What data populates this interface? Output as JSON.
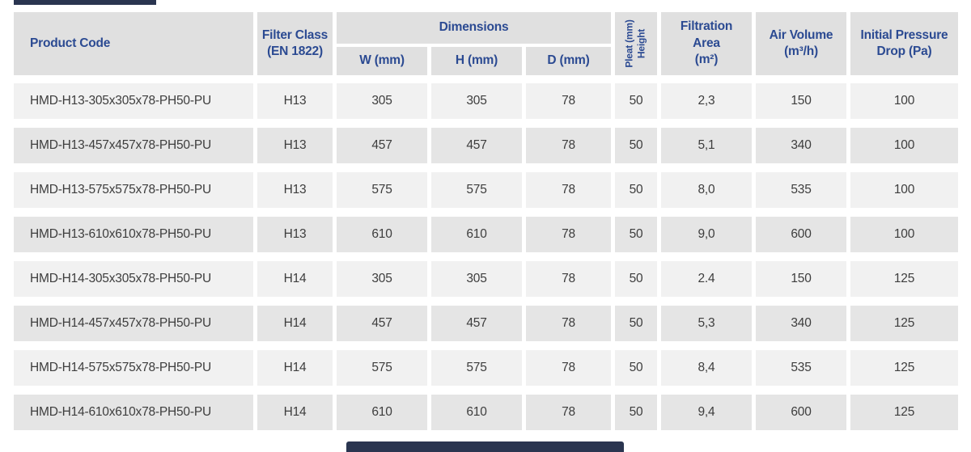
{
  "colors": {
    "header_text": "#2b4a92",
    "header_bg": "#e0e0e0",
    "row_odd_bg": "#f1f1f1",
    "row_even_bg": "#e5e5e5",
    "data_text": "#3d3d3d",
    "accent_dark": "#2a3550"
  },
  "table": {
    "headers": {
      "product_code": "Product Code",
      "filter_class_line1": "Filter Class",
      "filter_class_line2": "(EN 1822)",
      "dimensions": "Dimensions",
      "w": "W (mm)",
      "h": "H (mm)",
      "d": "D (mm)",
      "pleat_line1": "Pleat (mm)",
      "pleat_line2": "Height",
      "filtration_line1": "Filtration",
      "filtration_line2": "Area",
      "filtration_line3": "(m²)",
      "air_line1": "Air Volume",
      "air_line2": "(m³/h)",
      "pressure_line1": "Initial Pressure",
      "pressure_line2": "Drop (Pa)"
    },
    "rows": [
      {
        "product_code": "HMD-H13-305x305x78-PH50-PU",
        "filter_class": "H13",
        "w": "305",
        "h": "305",
        "d": "78",
        "pleat_height": "50",
        "filtration_area": "2,3",
        "air_volume": "150",
        "pressure_drop": "100"
      },
      {
        "product_code": "HMD-H13-457x457x78-PH50-PU",
        "filter_class": "H13",
        "w": "457",
        "h": "457",
        "d": "78",
        "pleat_height": "50",
        "filtration_area": "5,1",
        "air_volume": "340",
        "pressure_drop": "100"
      },
      {
        "product_code": "HMD-H13-575x575x78-PH50-PU",
        "filter_class": "H13",
        "w": "575",
        "h": "575",
        "d": "78",
        "pleat_height": "50",
        "filtration_area": "8,0",
        "air_volume": "535",
        "pressure_drop": "100"
      },
      {
        "product_code": "HMD-H13-610x610x78-PH50-PU",
        "filter_class": "H13",
        "w": "610",
        "h": "610",
        "d": "78",
        "pleat_height": "50",
        "filtration_area": "9,0",
        "air_volume": "600",
        "pressure_drop": "100"
      },
      {
        "product_code": "HMD-H14-305x305x78-PH50-PU",
        "filter_class": "H14",
        "w": "305",
        "h": "305",
        "d": "78",
        "pleat_height": "50",
        "filtration_area": "2.4",
        "air_volume": "150",
        "pressure_drop": "125"
      },
      {
        "product_code": "HMD-H14-457x457x78-PH50-PU",
        "filter_class": "H14",
        "w": "457",
        "h": "457",
        "d": "78",
        "pleat_height": "50",
        "filtration_area": "5,3",
        "air_volume": "340",
        "pressure_drop": "125"
      },
      {
        "product_code": "HMD-H14-575x575x78-PH50-PU",
        "filter_class": "H14",
        "w": "575",
        "h": "575",
        "d": "78",
        "pleat_height": "50",
        "filtration_area": "8,4",
        "air_volume": "535",
        "pressure_drop": "125"
      },
      {
        "product_code": "HMD-H14-610x610x78-PH50-PU",
        "filter_class": "H14",
        "w": "610",
        "h": "610",
        "d": "78",
        "pleat_height": "50",
        "filtration_area": "9,4",
        "air_volume": "600",
        "pressure_drop": "125"
      }
    ]
  }
}
